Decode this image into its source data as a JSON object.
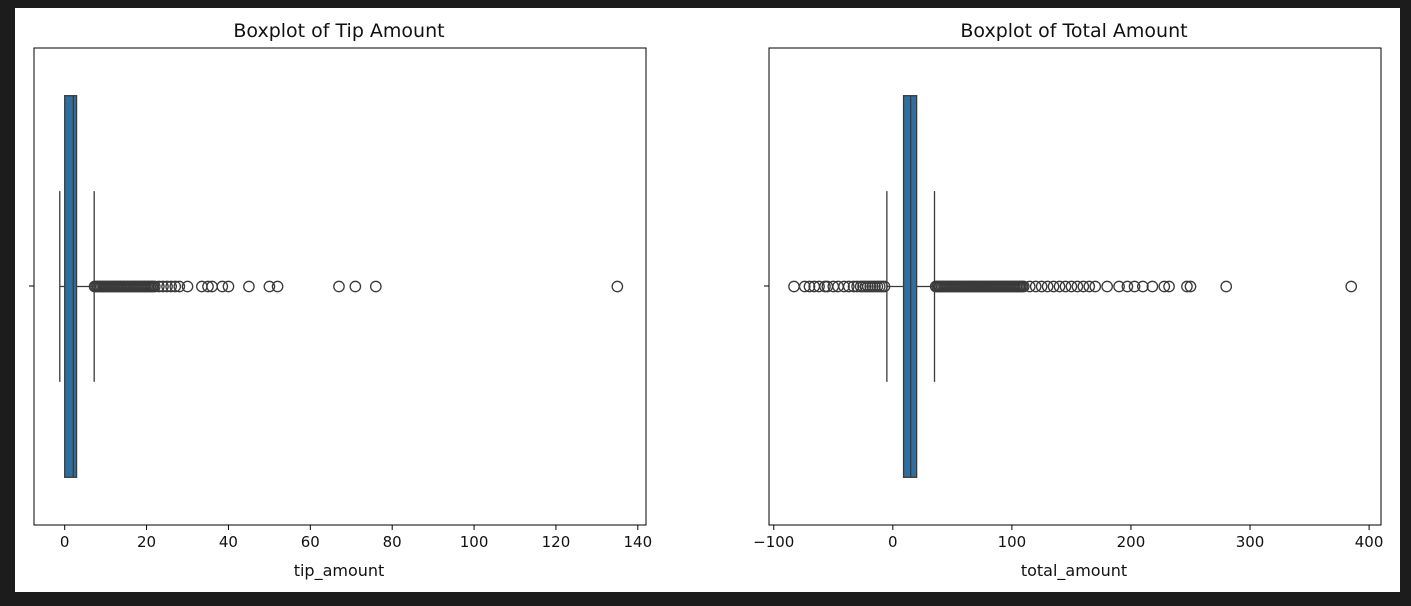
{
  "chart_data": [
    {
      "type": "boxplot",
      "title": "Boxplot of Tip Amount",
      "xlabel": "tip_amount",
      "xlim": [
        -7.5,
        142
      ],
      "xticks": [
        0,
        20,
        40,
        60,
        80,
        100,
        120,
        140
      ],
      "box": {
        "whisker_low": -1.2,
        "q1": 0,
        "median": 2.1,
        "q3": 2.9,
        "whisker_high": 7.2
      },
      "outlier_range_dense": [
        7.3,
        22
      ],
      "outliers": [
        23,
        24,
        25,
        26,
        27,
        28,
        30,
        33.5,
        35,
        36,
        38.5,
        40,
        45,
        50,
        52,
        67,
        71,
        76,
        135
      ],
      "colors": {
        "box": "#2f6f9f",
        "line": "#3a3a3a"
      }
    },
    {
      "type": "boxplot",
      "title": "Boxplot of Total Amount",
      "xlabel": "total_amount",
      "xlim": [
        -104,
        410
      ],
      "xticks": [
        -100,
        0,
        100,
        200,
        300,
        400
      ],
      "box": {
        "whisker_low": -5,
        "q1": 9,
        "median": 15,
        "q3": 20,
        "whisker_high": 35
      },
      "outlier_range_dense": [
        36,
        110
      ],
      "outliers": [
        -83,
        -74,
        -70,
        -66,
        -62,
        -57,
        -55,
        -50,
        -46,
        -41,
        -37,
        -33,
        -30,
        -27,
        -25,
        -23,
        -21,
        -19,
        -17,
        -15,
        -13,
        -11,
        -9,
        -7,
        115,
        120,
        125,
        130,
        135,
        140,
        145,
        150,
        155,
        160,
        165,
        170,
        180,
        190,
        197,
        203,
        210,
        218,
        228,
        232,
        247,
        250,
        280,
        385
      ],
      "colors": {
        "box": "#2f6f9f",
        "line": "#3a3a3a"
      }
    }
  ]
}
